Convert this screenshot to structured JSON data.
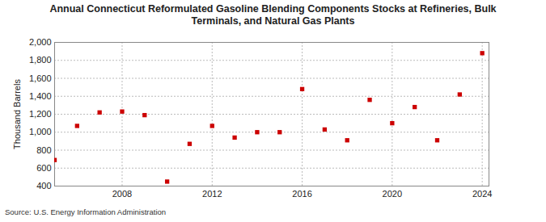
{
  "chart_data": {
    "type": "scatter",
    "title": "Annual Connecticut Reformulated Gasoline Blending Components Stocks at Refineries, Bulk Terminals, and Natural Gas Plants",
    "y_label": "Thousand Barrels",
    "source": "Source: U.S. Energy Information Administration",
    "x": [
      2005,
      2006,
      2007,
      2008,
      2009,
      2010,
      2011,
      2012,
      2013,
      2014,
      2015,
      2016,
      2017,
      2018,
      2019,
      2020,
      2021,
      2022,
      2023,
      2024
    ],
    "values": [
      690,
      1070,
      1220,
      1230,
      1190,
      450,
      870,
      1070,
      940,
      1000,
      1000,
      1480,
      1030,
      910,
      1360,
      1100,
      1280,
      910,
      1420,
      1880
    ],
    "color": "#cc0000",
    "marker": "square",
    "xlim": [
      2005,
      2024.3
    ],
    "xticks": [
      2008,
      2012,
      2016,
      2020,
      2024
    ],
    "ylim": [
      400,
      2000
    ],
    "yticks": [
      400,
      600,
      800,
      {
        "value": 1000,
        "label": "1,000"
      },
      {
        "value": 1200,
        "label": "1,200"
      },
      {
        "value": 1400,
        "label": "1,400"
      },
      {
        "value": 1600,
        "label": "1,600"
      },
      {
        "value": 1800,
        "label": "1,800"
      },
      {
        "value": 2000,
        "label": "2,000"
      }
    ],
    "grid": true
  }
}
